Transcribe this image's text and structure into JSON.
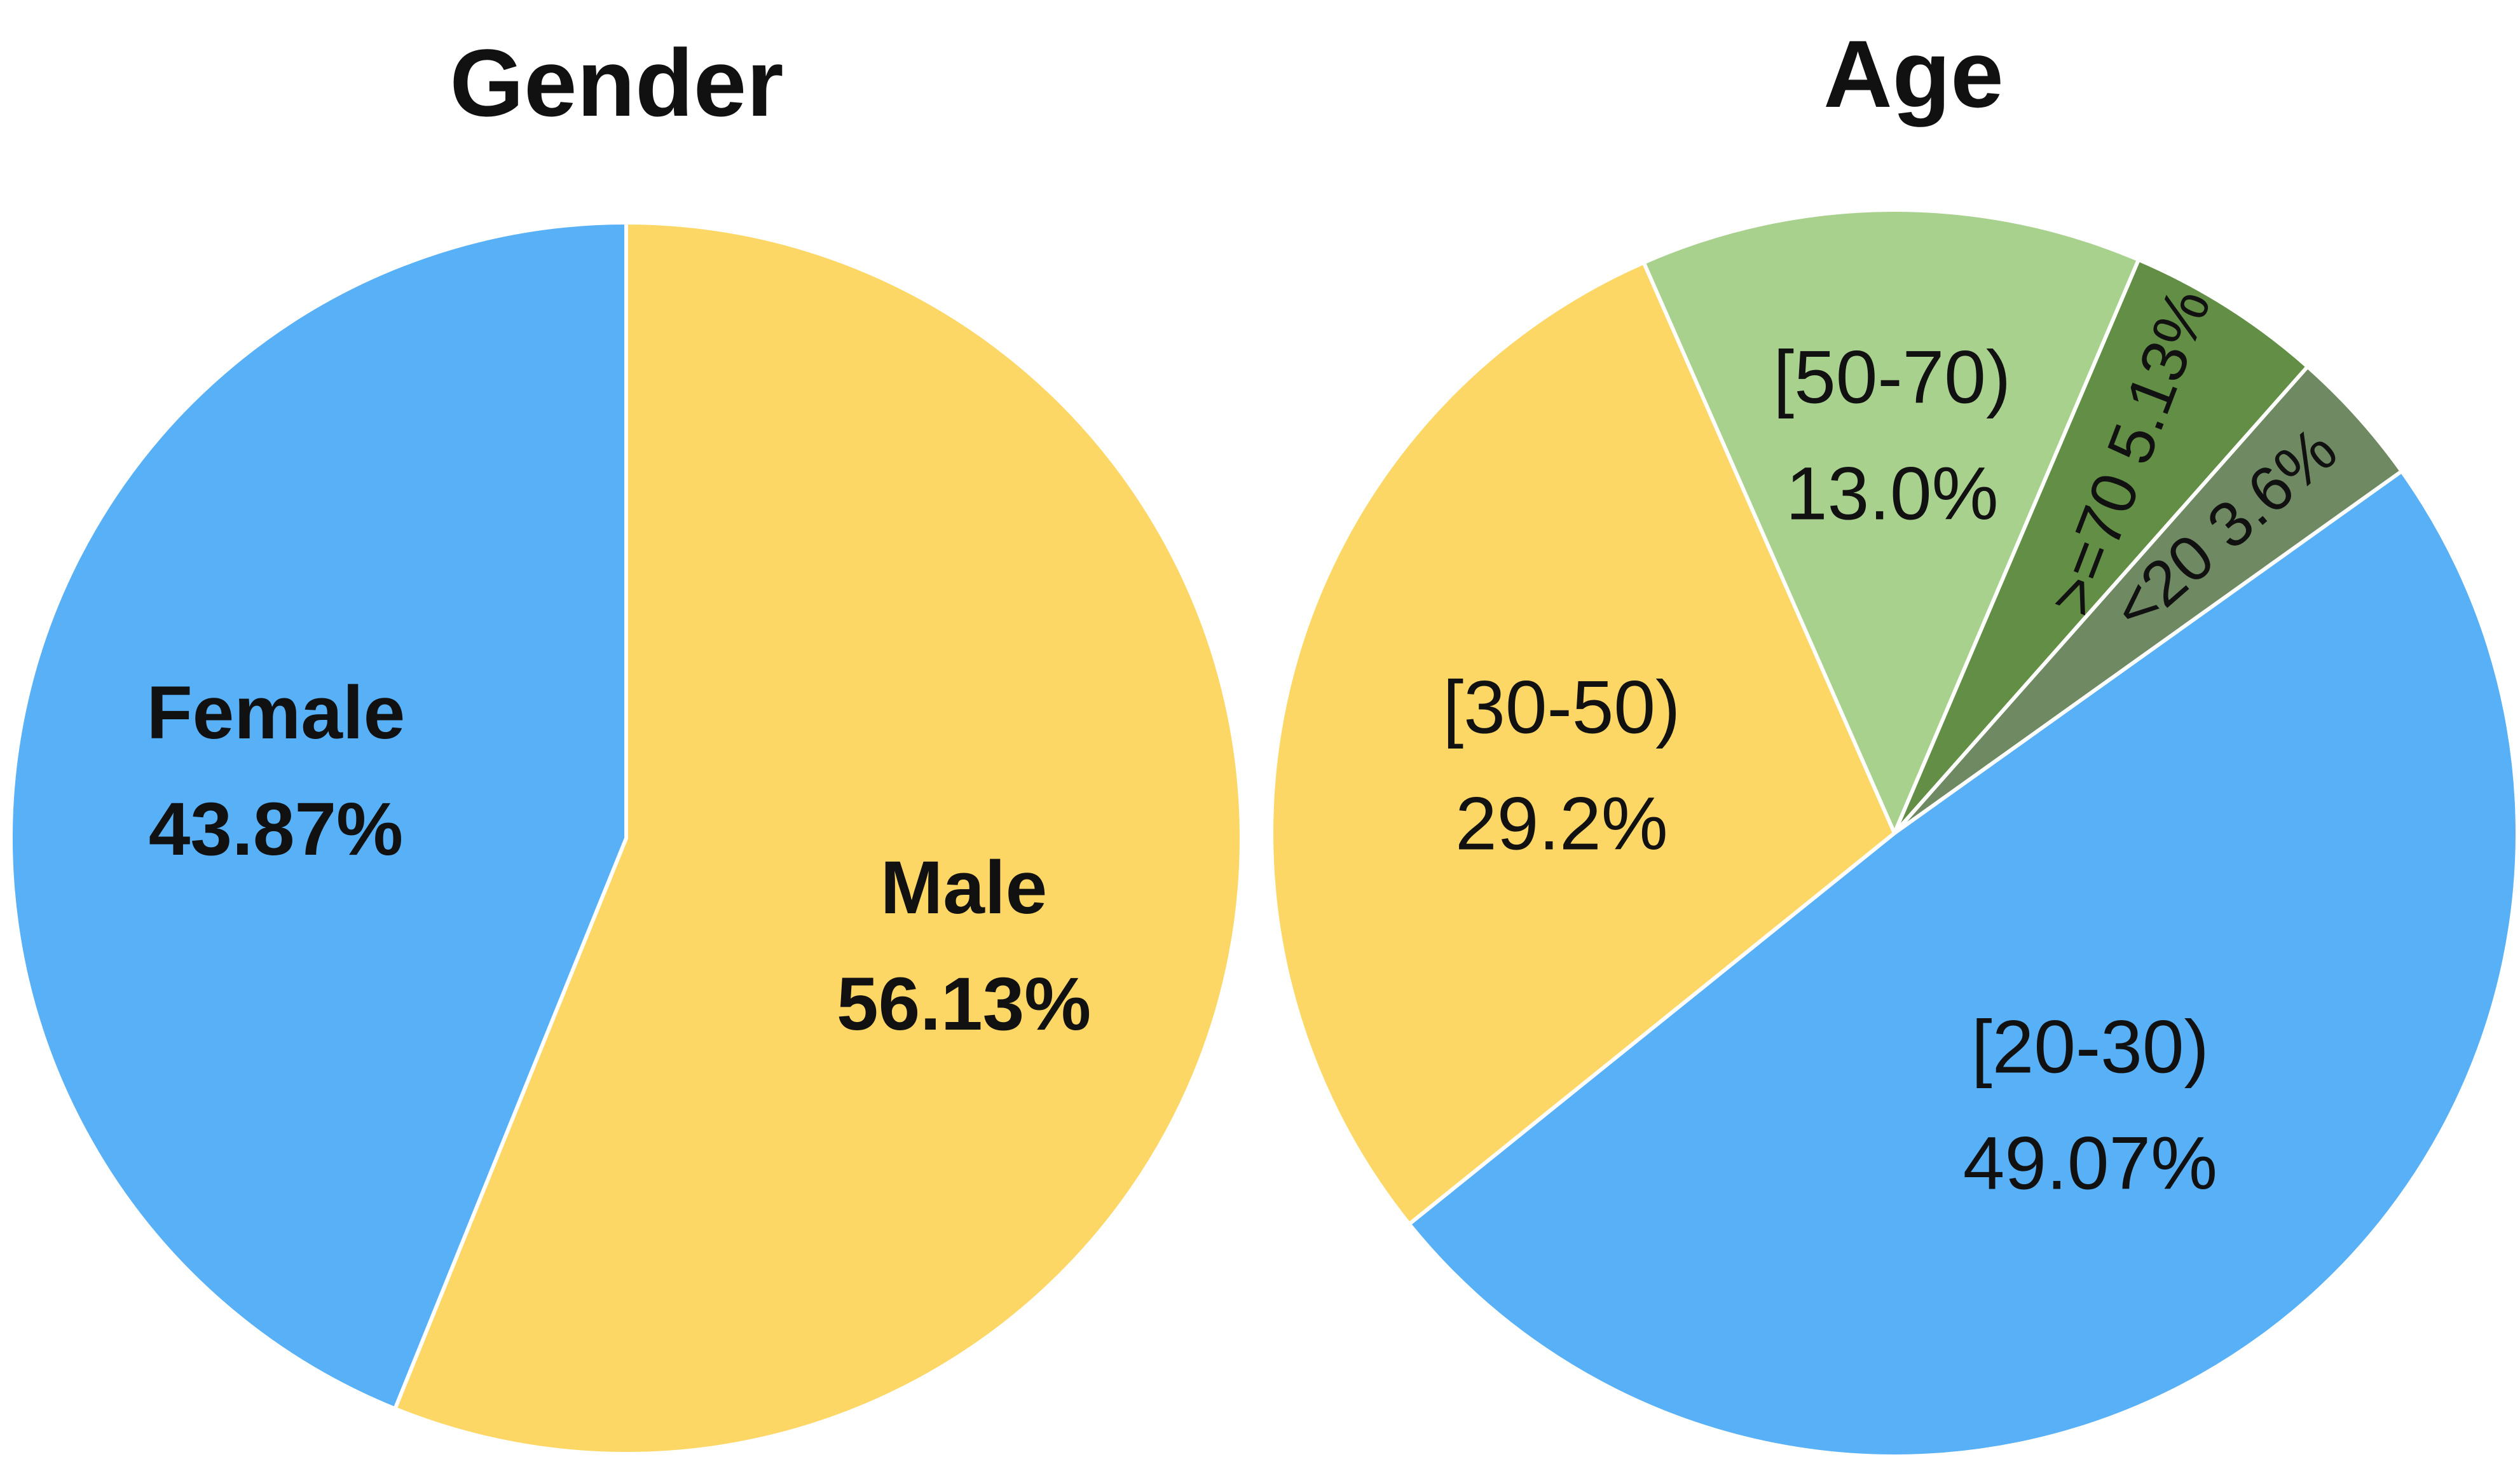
{
  "chart_data": [
    {
      "type": "pie",
      "title": "Gender",
      "slices": [
        {
          "label": "Male",
          "value": 56.13,
          "display": "56.13%",
          "color": "#FDD766"
        },
        {
          "label": "Female",
          "value": 43.87,
          "display": "43.87%",
          "color": "#58B0F7"
        }
      ]
    },
    {
      "type": "pie",
      "title": "Age",
      "slices": [
        {
          "label": "[20-30)",
          "value": 49.07,
          "display": "49.07%",
          "color": "#58B0F7"
        },
        {
          "label": "[30-50)",
          "value": 29.2,
          "display": "29.2%",
          "color": "#FDD766"
        },
        {
          "label": "[50-70)",
          "value": 13.0,
          "display": "13.0%",
          "color": "#A9D18E"
        },
        {
          "label": ">=70",
          "value": 5.13,
          "display": "5.13%",
          "color": "#638E45"
        },
        {
          "label": "<20",
          "value": 3.6,
          "display": "3.6%",
          "color": "#6F8963"
        }
      ]
    }
  ]
}
